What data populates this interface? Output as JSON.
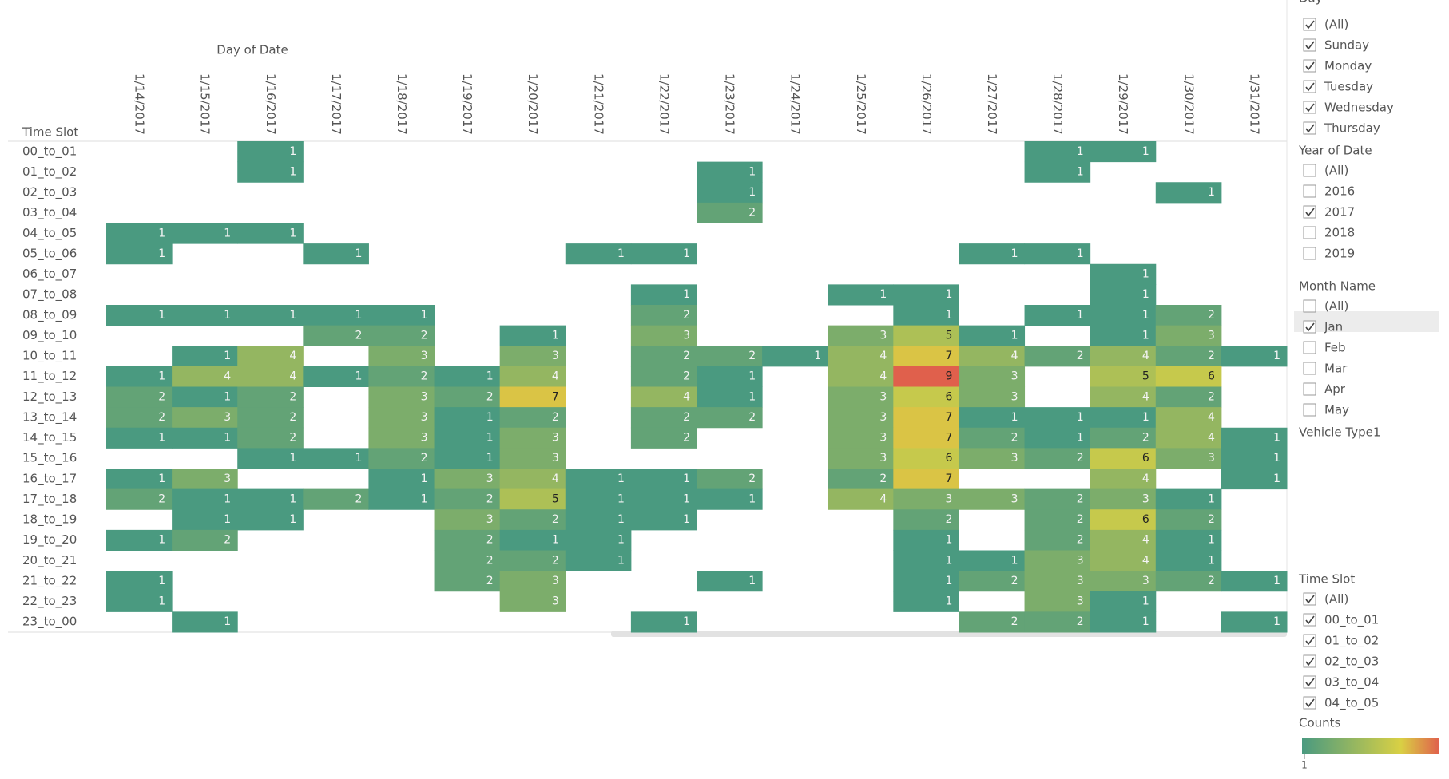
{
  "chart_data": {
    "type": "heatmap",
    "x_title": "Day of Date",
    "y_title": "Time Slot",
    "x": [
      "1/14/2017",
      "1/15/2017",
      "1/16/2017",
      "1/17/2017",
      "1/18/2017",
      "1/19/2017",
      "1/20/2017",
      "1/21/2017",
      "1/22/2017",
      "1/23/2017",
      "1/24/2017",
      "1/25/2017",
      "1/26/2017",
      "1/27/2017",
      "1/28/2017",
      "1/29/2017",
      "1/30/2017",
      "1/31/2017"
    ],
    "y": [
      "00_to_01",
      "01_to_02",
      "02_to_03",
      "03_to_04",
      "04_to_05",
      "05_to_06",
      "06_to_07",
      "07_to_08",
      "08_to_09",
      "09_to_10",
      "10_to_11",
      "11_to_12",
      "12_to_13",
      "13_to_14",
      "14_to_15",
      "15_to_16",
      "16_to_17",
      "17_to_18",
      "18_to_19",
      "19_to_20",
      "20_to_21",
      "21_to_22",
      "22_to_23",
      "23_to_00"
    ],
    "values": [
      [
        null,
        null,
        1,
        null,
        null,
        null,
        null,
        null,
        null,
        null,
        null,
        null,
        null,
        null,
        1,
        1,
        null,
        null
      ],
      [
        null,
        null,
        1,
        null,
        null,
        null,
        null,
        null,
        null,
        1,
        null,
        null,
        null,
        null,
        1,
        null,
        null,
        null
      ],
      [
        null,
        null,
        null,
        null,
        null,
        null,
        null,
        null,
        null,
        1,
        null,
        null,
        null,
        null,
        null,
        null,
        1,
        null
      ],
      [
        null,
        null,
        null,
        null,
        null,
        null,
        null,
        null,
        null,
        2,
        null,
        null,
        null,
        null,
        null,
        null,
        null,
        null
      ],
      [
        1,
        1,
        1,
        null,
        null,
        null,
        null,
        null,
        null,
        null,
        null,
        null,
        null,
        null,
        null,
        null,
        null,
        null
      ],
      [
        1,
        null,
        null,
        1,
        null,
        null,
        null,
        1,
        1,
        null,
        null,
        null,
        null,
        1,
        1,
        null,
        null,
        null
      ],
      [
        null,
        null,
        null,
        null,
        null,
        null,
        null,
        null,
        null,
        null,
        null,
        null,
        null,
        null,
        null,
        1,
        null,
        null
      ],
      [
        null,
        null,
        null,
        null,
        null,
        null,
        null,
        null,
        1,
        null,
        null,
        1,
        1,
        null,
        null,
        1,
        null,
        null
      ],
      [
        1,
        1,
        1,
        1,
        1,
        null,
        null,
        null,
        2,
        null,
        null,
        null,
        1,
        null,
        1,
        1,
        2,
        null
      ],
      [
        null,
        null,
        null,
        2,
        2,
        null,
        1,
        null,
        3,
        null,
        null,
        3,
        5,
        1,
        null,
        1,
        3,
        null
      ],
      [
        null,
        1,
        4,
        null,
        3,
        null,
        3,
        null,
        2,
        2,
        1,
        4,
        7,
        4,
        2,
        4,
        2,
        1
      ],
      [
        1,
        4,
        4,
        1,
        2,
        1,
        4,
        null,
        2,
        1,
        null,
        4,
        9,
        3,
        null,
        5,
        6,
        null
      ],
      [
        2,
        1,
        2,
        null,
        3,
        2,
        7,
        null,
        4,
        1,
        null,
        3,
        6,
        3,
        null,
        4,
        2,
        null
      ],
      [
        2,
        3,
        2,
        null,
        3,
        1,
        2,
        null,
        2,
        2,
        null,
        3,
        7,
        1,
        1,
        1,
        4,
        null
      ],
      [
        1,
        1,
        2,
        null,
        3,
        1,
        3,
        null,
        2,
        null,
        null,
        3,
        7,
        2,
        1,
        2,
        4,
        1
      ],
      [
        null,
        null,
        1,
        1,
        2,
        1,
        3,
        null,
        null,
        null,
        null,
        3,
        6,
        3,
        2,
        6,
        3,
        1
      ],
      [
        1,
        3,
        null,
        null,
        1,
        3,
        4,
        1,
        1,
        2,
        null,
        2,
        7,
        null,
        null,
        4,
        null,
        1
      ],
      [
        2,
        1,
        1,
        2,
        1,
        2,
        5,
        1,
        1,
        1,
        null,
        4,
        3,
        3,
        2,
        3,
        1,
        null
      ],
      [
        null,
        1,
        1,
        null,
        null,
        3,
        2,
        1,
        1,
        null,
        null,
        null,
        2,
        null,
        2,
        6,
        2,
        null
      ],
      [
        1,
        2,
        null,
        null,
        null,
        2,
        1,
        1,
        null,
        null,
        null,
        null,
        1,
        null,
        2,
        4,
        1,
        null
      ],
      [
        null,
        null,
        null,
        null,
        null,
        2,
        2,
        1,
        null,
        null,
        null,
        null,
        1,
        1,
        3,
        4,
        1,
        null
      ],
      [
        1,
        null,
        null,
        null,
        null,
        2,
        3,
        null,
        null,
        1,
        null,
        null,
        1,
        2,
        3,
        3,
        2,
        1
      ],
      [
        1,
        null,
        null,
        null,
        null,
        null,
        3,
        null,
        null,
        null,
        null,
        null,
        1,
        null,
        3,
        1,
        null,
        null
      ],
      [
        null,
        1,
        null,
        null,
        null,
        null,
        null,
        null,
        1,
        null,
        null,
        null,
        null,
        2,
        2,
        1,
        null,
        1
      ]
    ],
    "legend_title": "Counts",
    "clim": [
      1,
      9
    ],
    "colors": [
      "#4a9a80",
      "#d9d044",
      "#e0604c"
    ]
  },
  "filters": [
    {
      "title": "Day",
      "items": [
        {
          "label": "(All)",
          "checked": true
        },
        {
          "label": "Sunday",
          "checked": true
        },
        {
          "label": "Monday",
          "checked": true
        },
        {
          "label": "Tuesday",
          "checked": true
        },
        {
          "label": "Wednesday",
          "checked": true
        },
        {
          "label": "Thursday",
          "checked": true
        }
      ]
    },
    {
      "title": "Year of Date",
      "items": [
        {
          "label": "(All)",
          "checked": false
        },
        {
          "label": "2016",
          "checked": false
        },
        {
          "label": "2017",
          "checked": true
        },
        {
          "label": "2018",
          "checked": false
        },
        {
          "label": "2019",
          "checked": false
        }
      ]
    },
    {
      "title": "Month Name",
      "items": [
        {
          "label": "(All)",
          "checked": false
        },
        {
          "label": "Jan",
          "checked": true
        },
        {
          "label": "Feb",
          "checked": false
        },
        {
          "label": "Mar",
          "checked": false
        },
        {
          "label": "Apr",
          "checked": false
        },
        {
          "label": "May",
          "checked": false
        }
      ]
    },
    {
      "title": "Vehicle Type1",
      "items": []
    },
    {
      "title": "Time Slot",
      "items": [
        {
          "label": "(All)",
          "checked": true
        },
        {
          "label": "00_to_01",
          "checked": true
        },
        {
          "label": "01_to_02",
          "checked": true
        },
        {
          "label": "02_to_03",
          "checked": true
        },
        {
          "label": "03_to_04",
          "checked": true
        },
        {
          "label": "04_to_05",
          "checked": true
        }
      ]
    }
  ]
}
